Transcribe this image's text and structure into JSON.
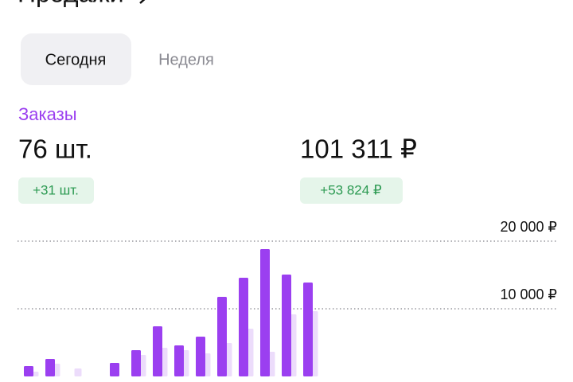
{
  "header": {
    "title": "Продажи"
  },
  "tabs": [
    "Сегодня",
    "Неделя"
  ],
  "section": "Заказы",
  "summary": {
    "count": "76 шт.",
    "amount": "101 311 ₽",
    "count_delta": "+31 шт.",
    "amount_delta": "+53 824 ₽"
  },
  "chart_data": {
    "type": "bar",
    "categories": [
      null,
      null,
      null,
      null,
      null,
      null,
      null,
      null,
      null,
      null,
      null,
      null,
      null,
      null
    ],
    "series": [
      {
        "color": "#ecdcfb",
        "values": [
          700,
          1880,
          1180,
          0,
          0,
          3180,
          4240,
          3880,
          3410,
          4940,
          7060,
          3650,
          9180,
          9650
        ]
      },
      {
        "color": "#9b3ff0",
        "values": [
          1530,
          2590,
          0,
          0,
          2000,
          3880,
          7410,
          4590,
          5880,
          11760,
          14590,
          18820,
          15060,
          13880
        ]
      }
    ],
    "ylim": [
      0,
      20000
    ],
    "yticks": [
      {
        "value": 10000,
        "label": "10 000 ₽"
      },
      {
        "value": 20000,
        "label": "20 000 ₽"
      }
    ],
    "grid": true
  }
}
